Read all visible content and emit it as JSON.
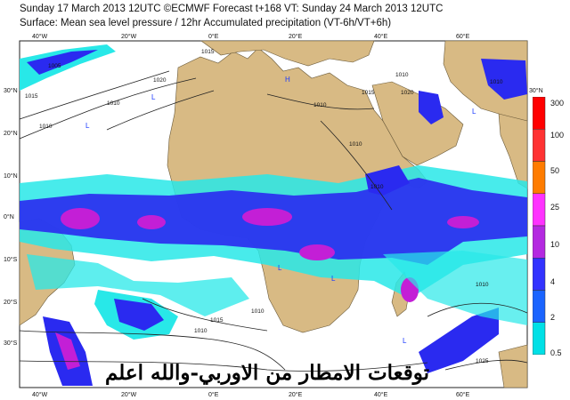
{
  "header": {
    "line1": "Sunday 17 March 2013 12UTC ©ECMWF Forecast t+168 VT: Sunday 24 March 2013 12UTC",
    "line2": "Surface: Mean sea level pressure / 12hr Accumulated precipitation (VT-6h/VT+6h)"
  },
  "map": {
    "lon_ticks_top": [
      "40°W",
      "20°W",
      "0°E",
      "20°E",
      "40°E",
      "60°E"
    ],
    "lon_ticks_bottom": [
      "40°W",
      "20°W",
      "0°E",
      "20°E",
      "40°E",
      "60°E"
    ],
    "lat_ticks_left": [
      "30°N",
      "20°N",
      "10°N",
      "0°N",
      "10°S",
      "20°S",
      "30°S"
    ],
    "lat_ticks_right": [
      "30°N"
    ],
    "isobar_labels": [
      "1015",
      "1015",
      "1010",
      "1010",
      "1010",
      "1020",
      "1015",
      "1010",
      "1010",
      "1005",
      "1010",
      "1010",
      "1010",
      "1010",
      "1015",
      "1010",
      "1020",
      "1025"
    ],
    "pressure_centers": [
      "H",
      "L",
      "L",
      "L",
      "L",
      "L",
      "L"
    ],
    "colors": {
      "ocean": "#ffffff",
      "land": "#d8ba84",
      "precip_light": "#28e8e8",
      "precip_mid": "#2a2af0",
      "precip_heavy": "#c31fd6"
    }
  },
  "legend": {
    "levels": [
      "300",
      "100",
      "50",
      "25",
      "10",
      "4",
      "2",
      "0.5"
    ],
    "colors": [
      "#ff0000",
      "#ff3232",
      "#ff7c00",
      "#ff32ff",
      "#b429e0",
      "#3232ff",
      "#1a64ff",
      "#00e0e6"
    ]
  },
  "overlay_text": "توقعات الامطار من الاوربي-والله اعلم"
}
